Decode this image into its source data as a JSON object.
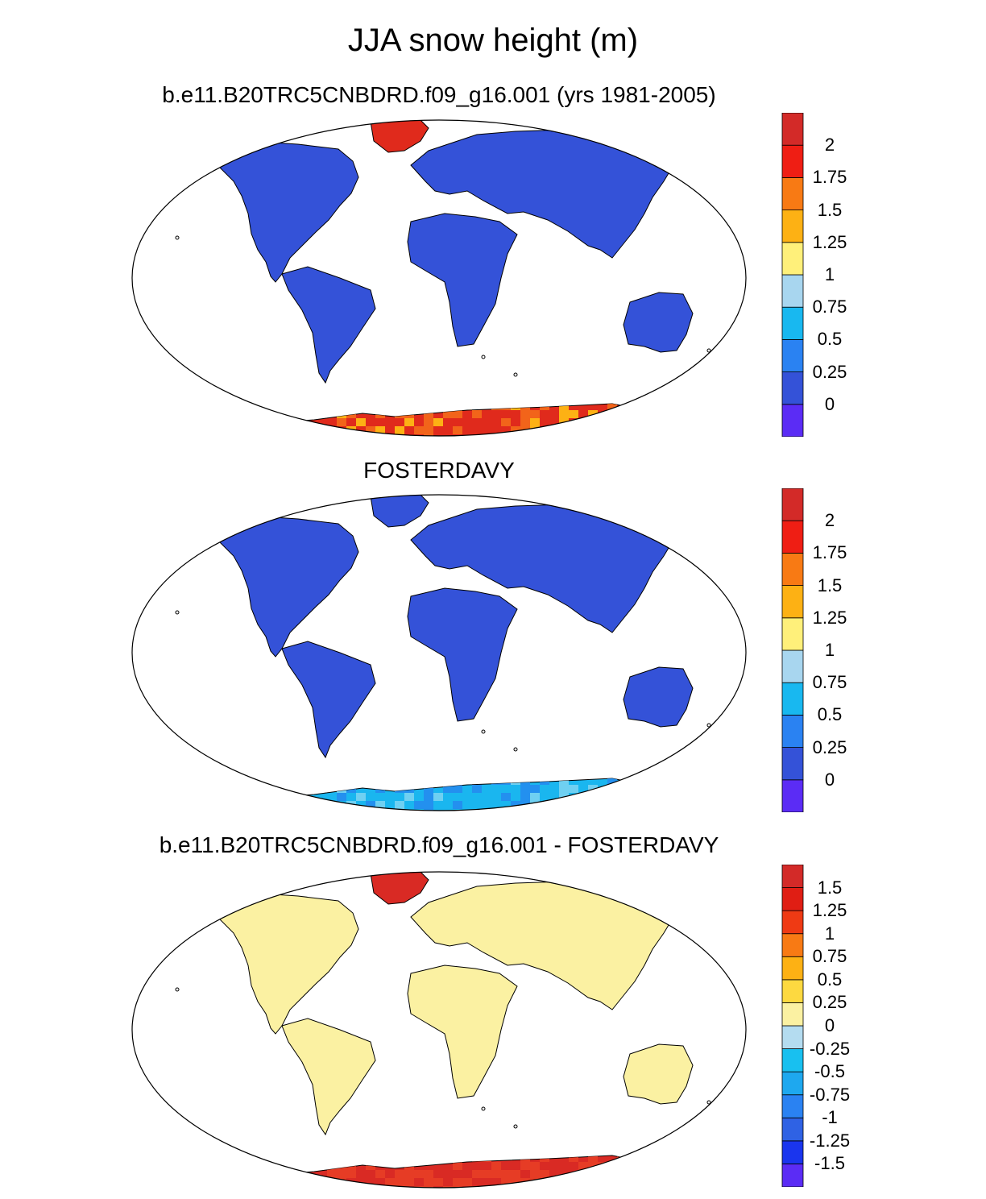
{
  "title": "JJA snow height (m)",
  "colors": {
    "ocean": "#ffffff",
    "land_low": "#3452d8",
    "coast": "#000000",
    "antarctic_a": [
      "#e02a1c",
      "#f2641a",
      "#fdb114"
    ],
    "antarctic_b": [
      "#1ab6ef",
      "#2390ef",
      "#6fd0f2"
    ],
    "diff_land": "#fbf1a2",
    "diff_greenland": "#d92a24",
    "diff_antarctic": [
      "#d92a24",
      "#e63c25"
    ]
  },
  "panels": [
    {
      "title": "b.e11.B20TRC5CNBDRD.f09_g16.001 (yrs 1981-2005)",
      "scheme": "a",
      "colorbar": {
        "labels": [
          "2",
          "1.75",
          "1.5",
          "1.25",
          "1",
          "0.75",
          "0.5",
          "0.25",
          "0"
        ],
        "colors": [
          "#5b2cf5",
          "#3452d8",
          "#2a82f2",
          "#18b8f0",
          "#a8d6ef",
          "#fff07a",
          "#fdb114",
          "#f87a14",
          "#ef1e14",
          "#d32a28"
        ]
      }
    },
    {
      "title": "FOSTERDAVY",
      "scheme": "b",
      "colorbar": {
        "labels": [
          "2",
          "1.75",
          "1.5",
          "1.25",
          "1",
          "0.75",
          "0.5",
          "0.25",
          "0"
        ],
        "colors": [
          "#5b2cf5",
          "#3452d8",
          "#2a82f2",
          "#18b8f0",
          "#a8d6ef",
          "#fff07a",
          "#fdb114",
          "#f87a14",
          "#ef1e14",
          "#d32a28"
        ]
      }
    },
    {
      "title": "b.e11.B20TRC5CNBDRD.f09_g16.001 - FOSTERDAVY",
      "scheme": "diff",
      "colorbar": {
        "labels": [
          "1.5",
          "1.25",
          "1",
          "0.75",
          "0.5",
          "0.25",
          "0",
          "-0.25",
          "-0.5",
          "-0.75",
          "-1",
          "-1.25",
          "-1.5"
        ],
        "colors": [
          "#5b2cf5",
          "#1a35ee",
          "#2f62e4",
          "#2a82f2",
          "#1ea8ef",
          "#18c0f0",
          "#b4dcf0",
          "#fbf1a2",
          "#fdd940",
          "#fdb114",
          "#f87a14",
          "#ef3a14",
          "#e01e14",
          "#d32a28"
        ]
      }
    }
  ]
}
